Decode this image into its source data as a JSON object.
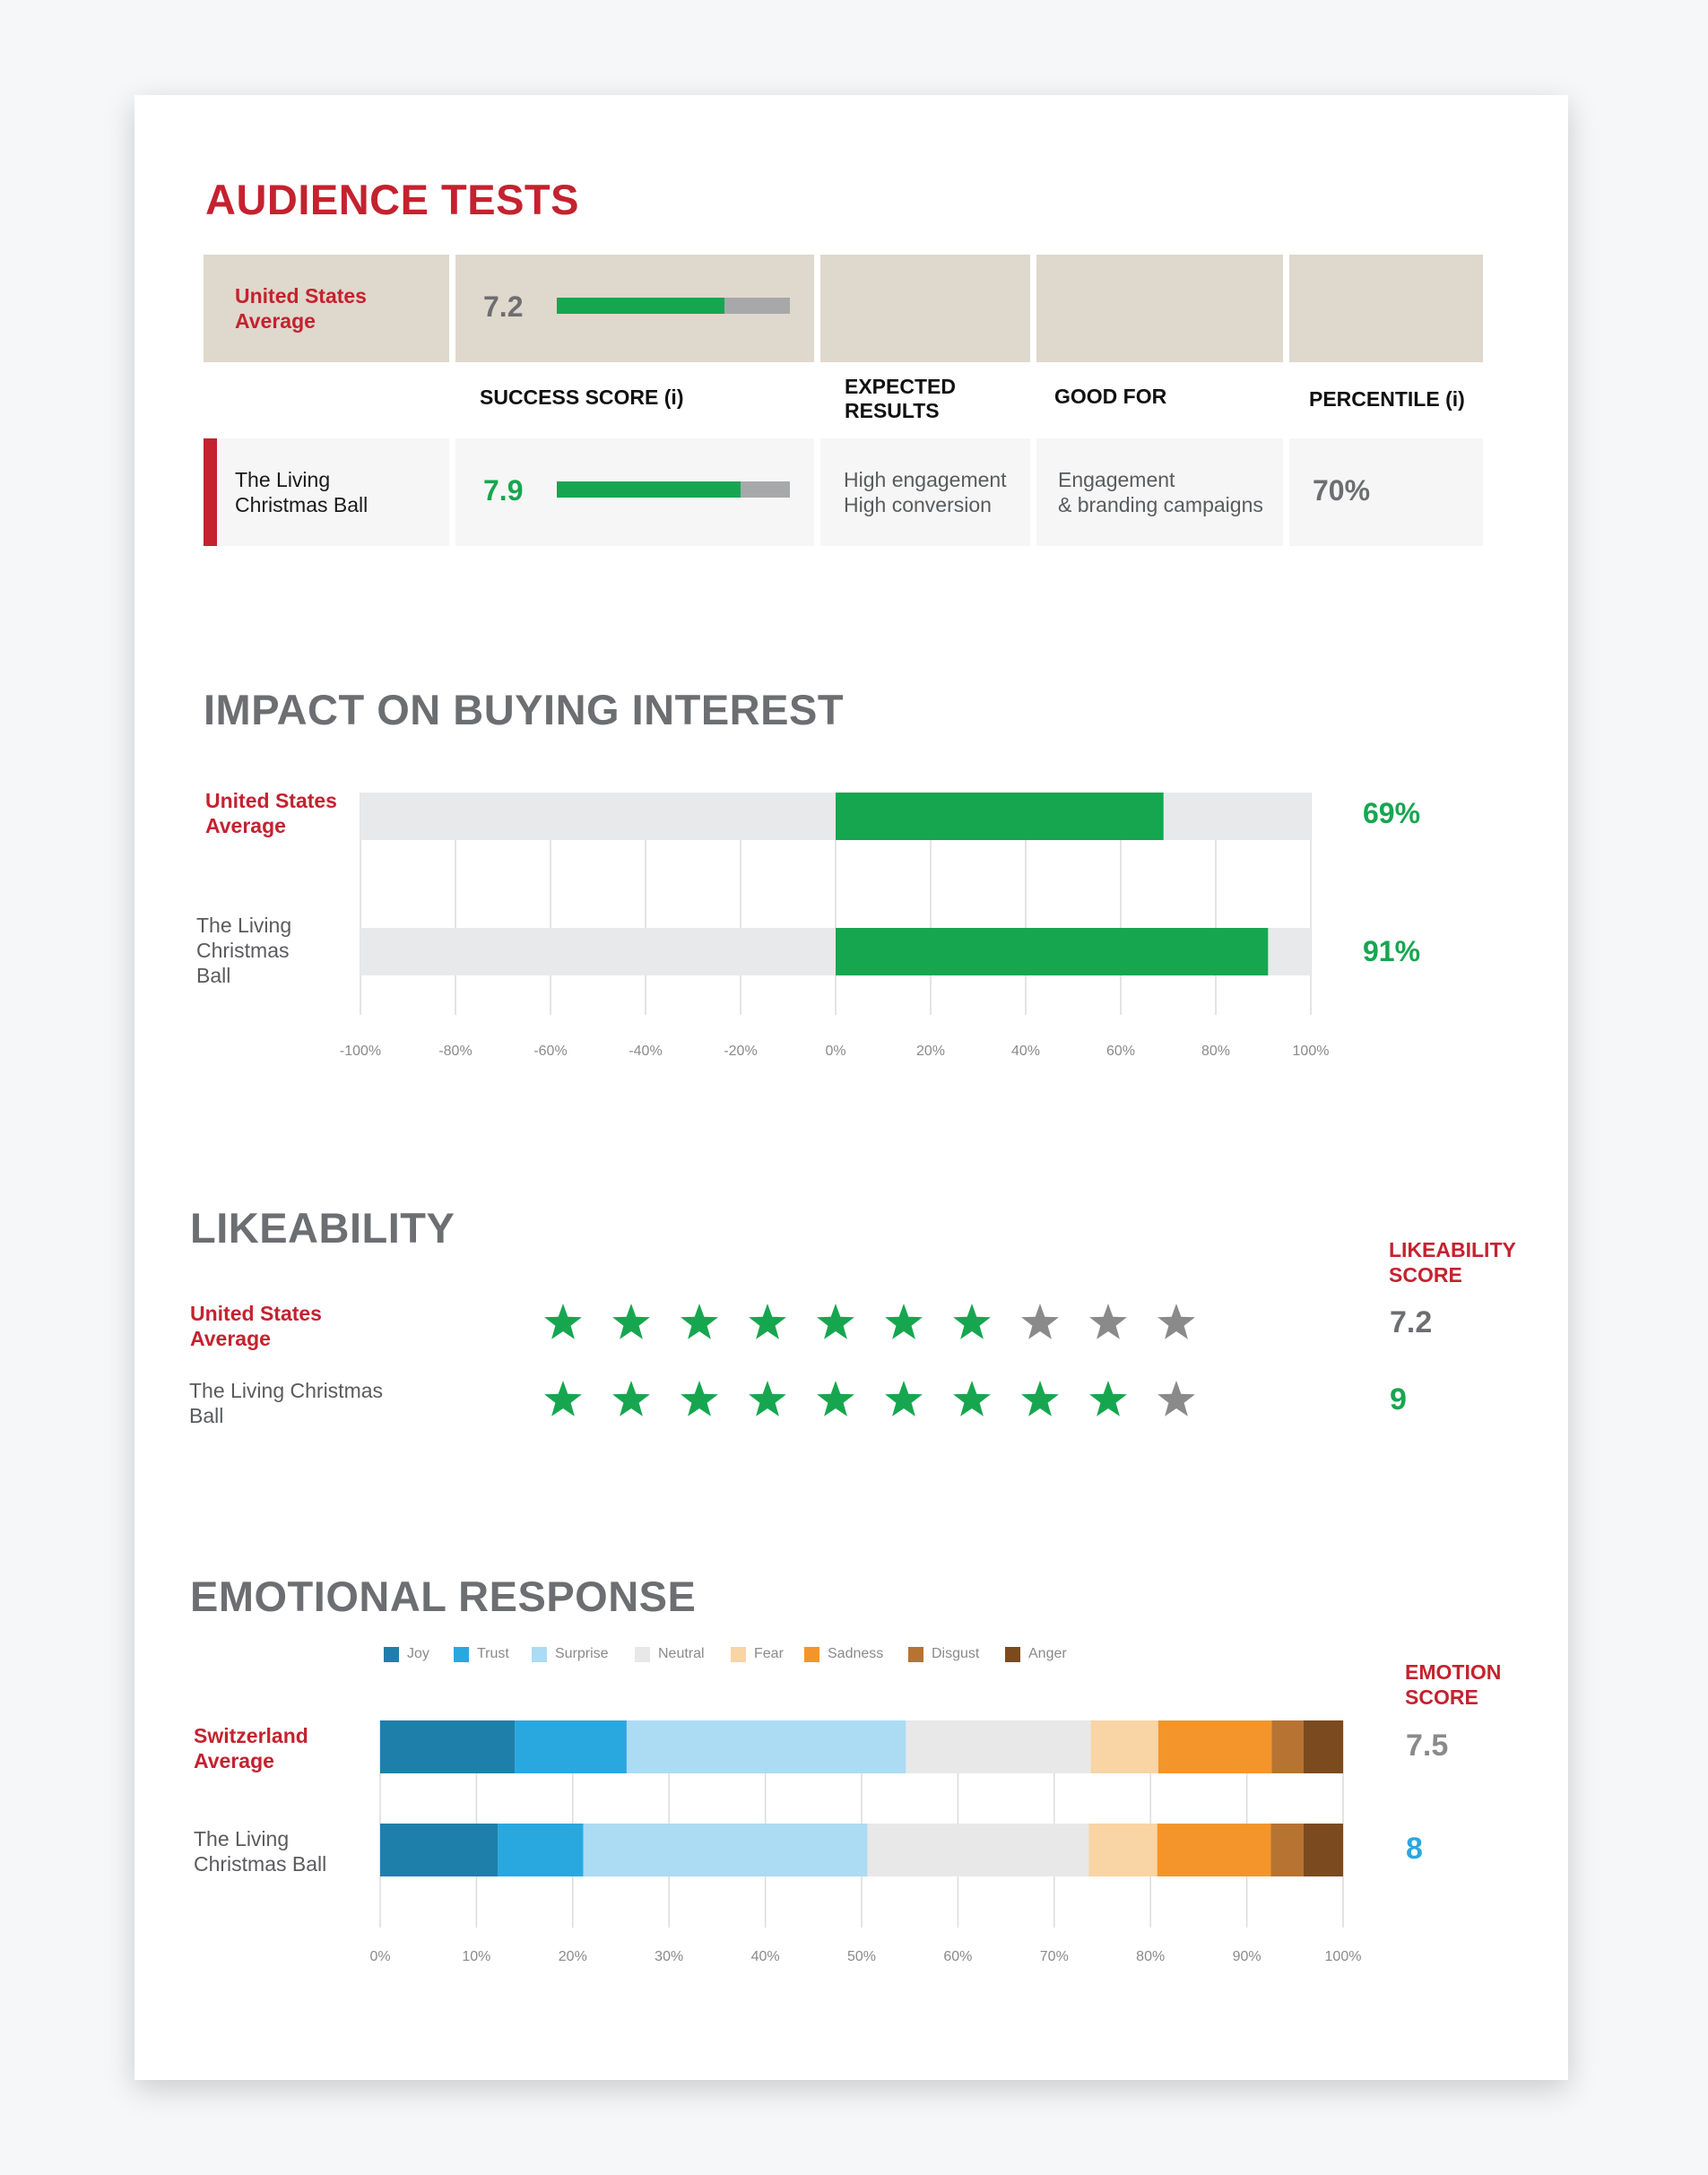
{
  "audience_tests": {
    "title": "AUDIENCE TESTS",
    "avg_label": "United States Average",
    "avg_score": "7.2",
    "avg_score_value": 7.2,
    "headers": {
      "success": "SUCCESS SCORE (i)",
      "expected": "EXPECTED RESULTS",
      "good_for": "GOOD FOR",
      "percentile": "PERCENTILE (i)"
    },
    "ad_name": "The Living Christmas Ball",
    "ad_score": "7.9",
    "ad_score_value": 7.9,
    "expected_1": "High engagement",
    "expected_2": "High conversion",
    "good_for_1": "Engagement",
    "good_for_2": "& branding campaigns",
    "percentile": "70%",
    "colors": {
      "accent": "#c4222f",
      "green": "#17a650",
      "beige": "#dfd8cc"
    }
  },
  "buying_interest": {
    "title": "IMPACT ON BUYING INTEREST",
    "avg_label": "United States Average",
    "ad_label": "The Living Christmas Ball",
    "avg_value_text": "69%",
    "ad_value_text": "91%"
  },
  "likeability": {
    "title": "LIKEABILITY",
    "score_header": "LIKEABILITY SCORE",
    "avg_label": "United States Average",
    "ad_label": "The Living Christmas Ball",
    "avg_score": "7.2",
    "ad_score": "9",
    "avg_stars_filled": 7,
    "ad_stars_filled": 9,
    "stars_total": 10,
    "star_colors": {
      "filled": "#17a650",
      "empty": "#8a8a8a"
    }
  },
  "emotional": {
    "title": "EMOTIONAL RESPONSE",
    "score_header": "EMOTION SCORE",
    "avg_label": "Switzerland Average",
    "ad_label": "The Living Christmas Ball",
    "avg_score": "7.5",
    "ad_score": "8"
  },
  "chart_data": [
    {
      "type": "bar",
      "orientation": "horizontal",
      "title": "IMPACT ON BUYING INTEREST",
      "categories": [
        "United States Average",
        "The Living Christmas Ball"
      ],
      "values": [
        69,
        91
      ],
      "value_labels": [
        "69%",
        "91%"
      ],
      "xlim": [
        -100,
        100
      ],
      "xticks": [
        "-100%",
        "-80%",
        "-60%",
        "-40%",
        "-20%",
        "0%",
        "20%",
        "40%",
        "60%",
        "80%",
        "100%"
      ],
      "grid": true,
      "colors": {
        "bar": "#17a650",
        "track": "#e8e9ea"
      }
    },
    {
      "type": "bar",
      "orientation": "horizontal",
      "stacked": true,
      "title": "EMOTIONAL RESPONSE",
      "categories": [
        "Switzerland Average",
        "The Living Christmas Ball"
      ],
      "series": [
        {
          "name": "Joy",
          "color": "#1f7fab",
          "values": [
            14,
            12.2
          ]
        },
        {
          "name": "Trust",
          "color": "#29a8e0",
          "values": [
            11.6,
            8.9
          ]
        },
        {
          "name": "Surprise",
          "color": "#abdcf4",
          "values": [
            29,
            29.5
          ]
        },
        {
          "name": "Neutral",
          "color": "#e8e8e8",
          "values": [
            19.2,
            23
          ]
        },
        {
          "name": "Fear",
          "color": "#f9d4a4",
          "values": [
            7,
            7.1
          ]
        },
        {
          "name": "Sadness",
          "color": "#f3952a",
          "values": [
            11.8,
            11.8
          ]
        },
        {
          "name": "Disgust",
          "color": "#b77331",
          "values": [
            3.3,
            3.4
          ]
        },
        {
          "name": "Anger",
          "color": "#7b4a1f",
          "values": [
            4.1,
            4.1
          ]
        }
      ],
      "xlim": [
        0,
        100
      ],
      "xticks": [
        "0%",
        "10%",
        "20%",
        "30%",
        "40%",
        "50%",
        "60%",
        "70%",
        "80%",
        "90%",
        "100%"
      ],
      "grid": true,
      "legend": "top"
    }
  ]
}
